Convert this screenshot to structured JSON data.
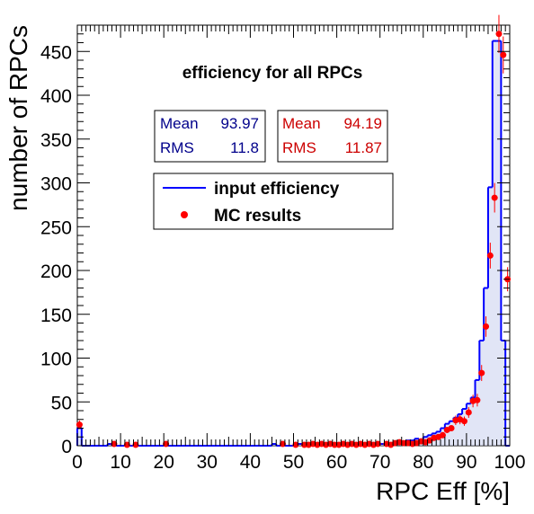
{
  "chart_data": {
    "type": "histogram",
    "title": "efficiency for all RPCs",
    "xlabel": "RPC Eff [%]",
    "ylabel": "number of RPCs",
    "xlim": [
      0,
      100
    ],
    "ylim": [
      0,
      480
    ],
    "xticks": [
      0,
      10,
      20,
      30,
      40,
      50,
      60,
      70,
      80,
      90,
      100
    ],
    "yticks": [
      0,
      50,
      100,
      150,
      200,
      250,
      300,
      350,
      400,
      450
    ],
    "grid": false,
    "legend_position": "upper-left",
    "colors": {
      "input": "#0000ff",
      "mc": "#ff0000",
      "fill": "#c8d0ee"
    },
    "stats": [
      {
        "series": "input",
        "mean_label": "Mean",
        "mean": "93.97",
        "rms_label": "RMS",
        "rms": "11.8",
        "color": "#00008b"
      },
      {
        "series": "mc",
        "mean_label": "Mean",
        "mean": "94.19",
        "rms_label": "RMS",
        "rms": "11.87",
        "color": "#cc0000"
      }
    ],
    "legend": [
      {
        "label": "input efficiency",
        "marker": "line",
        "color": "#0000ff"
      },
      {
        "label": "MC results",
        "marker": "point",
        "color": "#ff0000"
      }
    ],
    "input_hist": {
      "bin_edges": [
        0,
        1,
        2,
        7,
        8,
        9,
        45,
        46,
        47,
        50,
        51,
        52,
        53,
        54,
        55,
        56,
        57,
        58,
        59,
        60,
        61,
        62,
        63,
        64,
        65,
        66,
        67,
        68,
        69,
        70,
        71,
        72,
        73,
        74,
        75,
        76,
        77,
        78,
        79,
        80,
        81,
        82,
        83,
        84,
        85,
        86,
        87,
        88,
        89,
        90,
        91,
        92,
        93,
        94,
        95,
        96,
        97,
        98,
        99,
        100
      ],
      "counts": [
        20,
        0,
        0,
        2,
        0,
        0,
        2,
        0,
        0,
        1,
        2,
        1,
        2,
        1,
        2,
        1,
        2,
        1,
        2,
        1,
        2,
        1,
        2,
        1,
        2,
        1,
        2,
        1,
        2,
        2,
        3,
        3,
        4,
        5,
        5,
        6,
        6,
        8,
        7,
        10,
        12,
        14,
        16,
        20,
        25,
        28,
        32,
        36,
        42,
        48,
        55,
        75,
        120,
        180,
        295,
        462,
        462,
        120,
        0
      ]
    },
    "mc_points": {
      "x": [
        0.5,
        8.5,
        11.5,
        13.5,
        20.5,
        47.5,
        50.5,
        52.5,
        53.5,
        54.5,
        55.5,
        56.5,
        57.5,
        58.5,
        59.5,
        60.5,
        61.5,
        62.5,
        63.5,
        64.5,
        65.5,
        66.5,
        67.5,
        68.5,
        69.5,
        71.5,
        72.5,
        73.5,
        74.5,
        75.5,
        76.5,
        77.5,
        78.5,
        79.5,
        80.5,
        81.5,
        82.5,
        83.5,
        84.5,
        85.5,
        86.5,
        87.5,
        88.5,
        89.5,
        90.5,
        91.5,
        92.5,
        93.5,
        94.5,
        95.5,
        96.5,
        97.5,
        98.5,
        99.5
      ],
      "y": [
        24,
        2,
        1,
        1,
        2,
        2,
        1,
        1,
        1,
        2,
        1,
        2,
        1,
        2,
        1,
        1,
        2,
        1,
        2,
        1,
        2,
        1,
        2,
        1,
        2,
        2,
        1,
        3,
        4,
        3,
        3,
        2,
        3,
        5,
        4,
        6,
        9,
        10,
        12,
        18,
        20,
        29,
        30,
        28,
        38,
        51,
        52,
        83,
        136,
        217,
        283,
        470,
        446,
        190
      ]
    }
  }
}
